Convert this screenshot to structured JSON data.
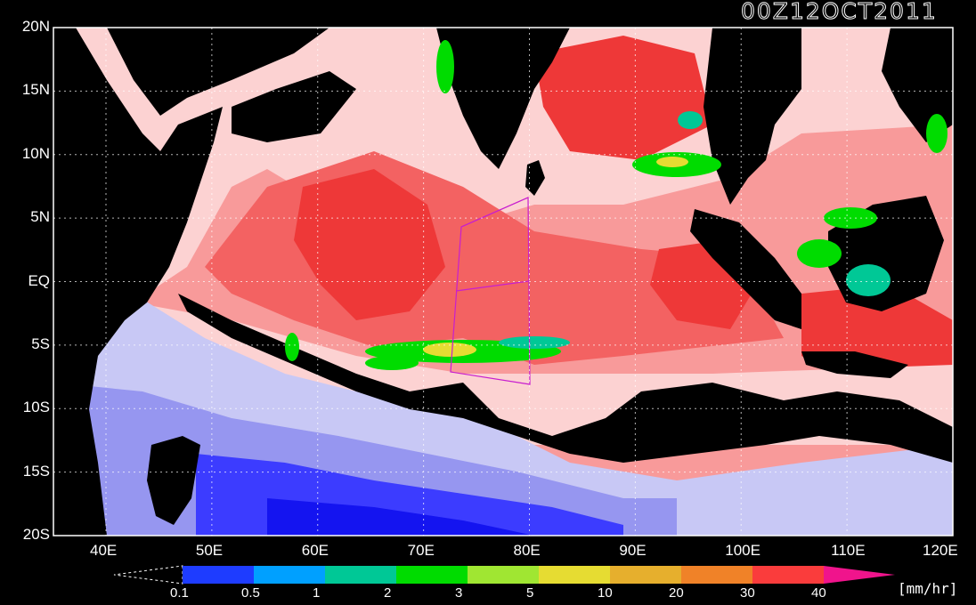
{
  "timestamp": "00Z12OCT2011",
  "unit": "[mm/hr]",
  "lat_labels": [
    "20N",
    "15N",
    "10N",
    "5N",
    "EQ",
    "5S",
    "10S",
    "15S",
    "20S"
  ],
  "lon_labels": [
    "40E",
    "50E",
    "60E",
    "70E",
    "80E",
    "90E",
    "100E",
    "110E",
    "120E"
  ],
  "colorbar": {
    "labels": [
      "0.1",
      "0.5",
      "1",
      "2",
      "3",
      "5",
      "10",
      "20",
      "30",
      "40"
    ],
    "colors": [
      "#1e3cff",
      "#00a0ff",
      "#00c896",
      "#00dc00",
      "#a0e632",
      "#e6dc32",
      "#e6af2d",
      "#f08228",
      "#fa3c3c",
      "#f0148c"
    ]
  },
  "colors": {
    "land": "#000000",
    "no_rain": "#ffffff",
    "ocean_light": "#fcd2d2",
    "ocean_mid": "#f89a9a",
    "ocean_strong": "#f36262",
    "ocean_max": "#ee3838",
    "south_pale": "#c8c8f5",
    "south_mid": "#9696f0",
    "south_deep": "#3c3cff",
    "south_blue": "#1414f0",
    "box": "#c81ecf"
  }
}
